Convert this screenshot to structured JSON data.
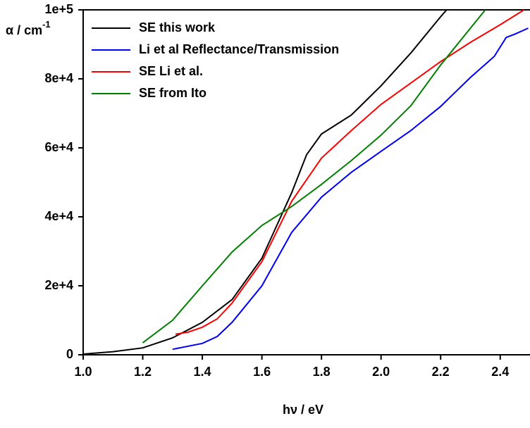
{
  "chart_data": {
    "type": "line",
    "x_label": "hν / eV",
    "y_label": {
      "text": "α / cm",
      "sup": "-1"
    },
    "xlim": [
      1.0,
      2.5
    ],
    "xticks": [
      {
        "value": 1.0,
        "label": "1.0"
      },
      1.2,
      1.4,
      1.6,
      1.8,
      {
        "value": 2.0,
        "label": "2.0"
      },
      2.2,
      2.4
    ],
    "ylim": [
      0,
      100000
    ],
    "yticks": [
      0,
      {
        "value": 20000,
        "label": "2e+4"
      },
      {
        "value": 40000,
        "label": "4e+4"
      },
      {
        "value": 60000,
        "label": "6e+4"
      },
      {
        "value": 80000,
        "label": "8e+4"
      },
      {
        "value": 100000,
        "label": "1e+5"
      }
    ],
    "legend": "top-left",
    "series": [
      {
        "name": "SE this work",
        "color": "#000000",
        "x": [
          1.0,
          1.1,
          1.2,
          1.3,
          1.4,
          1.5,
          1.6,
          1.7,
          1.75,
          1.8,
          1.9,
          2.0,
          2.1,
          2.2,
          2.22
        ],
        "values": [
          200,
          900,
          2000,
          4900,
          9400,
          16000,
          28000,
          47000,
          58000,
          64000,
          69500,
          78000,
          87500,
          98000,
          100000
        ]
      },
      {
        "name": "Li et al Reflectance/Transmission",
        "color": "#0000ff",
        "x": [
          1.3,
          1.4,
          1.45,
          1.5,
          1.6,
          1.7,
          1.8,
          1.9,
          2.0,
          2.1,
          2.2,
          2.3,
          2.38,
          2.42,
          2.45,
          2.494
        ],
        "values": [
          1600,
          3300,
          5300,
          9400,
          20000,
          35500,
          45700,
          52900,
          59000,
          65000,
          72000,
          80400,
          86500,
          92000,
          93000,
          94700
        ]
      },
      {
        "name": "SE Li et al.",
        "color": "#ff0000",
        "x": [
          1.31,
          1.35,
          1.4,
          1.45,
          1.5,
          1.6,
          1.7,
          1.8,
          1.9,
          2.0,
          2.1,
          2.2,
          2.3,
          2.4,
          2.48
        ],
        "values": [
          6000,
          6500,
          8000,
          10400,
          15000,
          27000,
          44500,
          57000,
          65000,
          72600,
          78800,
          85000,
          90600,
          95700,
          100000
        ]
      },
      {
        "name": "SE from Ito",
        "color": "#008000",
        "x": [
          1.2,
          1.3,
          1.4,
          1.5,
          1.6,
          1.7,
          1.8,
          1.9,
          2.0,
          2.1,
          2.2,
          2.3,
          2.35
        ],
        "values": [
          3500,
          10000,
          20000,
          29800,
          37500,
          43000,
          49400,
          56300,
          63700,
          72200,
          84000,
          94700,
          100000
        ]
      }
    ]
  }
}
